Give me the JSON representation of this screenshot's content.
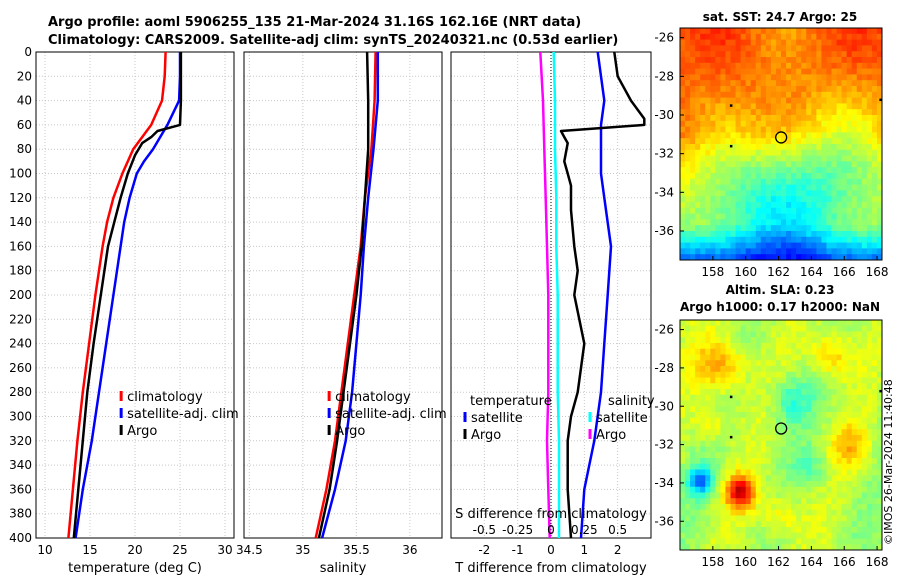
{
  "header": {
    "line1": "Argo profile: aoml 5906255_135 21-Mar-2024 31.16S 162.16E (NRT data)",
    "line2": "Climatology: CARS2009. Satellite-adj clim: synTS_20240321.nc (0.53d earlier)"
  },
  "copyright": "©IMOS 26-Mar-2024 11:40:48",
  "colors": {
    "climatology": "#ff0000",
    "satellite": "#0000ff",
    "argo": "#000000",
    "sat_salinity": "#00ffff",
    "argo_salinity": "#ff00ff"
  },
  "chart_data": [
    {
      "type": "line",
      "name": "temperature",
      "xlabel": "temperature (deg C)",
      "ylabel": "",
      "xlim": [
        9,
        31
      ],
      "ylim": [
        0,
        400
      ],
      "xticks": [
        10,
        15,
        20,
        25,
        30
      ],
      "yticks": [
        0,
        20,
        40,
        60,
        80,
        100,
        120,
        140,
        160,
        180,
        200,
        220,
        240,
        260,
        280,
        300,
        320,
        340,
        360,
        380,
        400
      ],
      "legend": [
        "climatology",
        "satellite-adj. clim",
        "Argo"
      ],
      "series": [
        {
          "name": "climatology",
          "color": "#ff0000",
          "depth": [
            0,
            20,
            40,
            60,
            80,
            100,
            120,
            140,
            160,
            200,
            240,
            280,
            320,
            360,
            400
          ],
          "values": [
            23.4,
            23.3,
            23.0,
            21.8,
            19.8,
            18.6,
            17.6,
            16.9,
            16.4,
            15.6,
            14.9,
            14.2,
            13.6,
            13.1,
            12.6
          ]
        },
        {
          "name": "satellite-adj. clim",
          "color": "#0000ff",
          "depth": [
            0,
            20,
            40,
            60,
            80,
            90,
            100,
            120,
            140,
            160,
            200,
            240,
            280,
            320,
            360,
            400
          ],
          "values": [
            25.0,
            25.0,
            24.9,
            23.6,
            22.0,
            21.0,
            20.2,
            19.4,
            18.8,
            18.4,
            17.6,
            16.8,
            16.0,
            15.2,
            14.2,
            13.4
          ]
        },
        {
          "name": "Argo",
          "color": "#000000",
          "depth": [
            0,
            20,
            40,
            60,
            65,
            70,
            75,
            85,
            100,
            120,
            140,
            160,
            200,
            240,
            280,
            320,
            360,
            400
          ],
          "values": [
            25.1,
            25.1,
            25.1,
            25.0,
            22.5,
            21.8,
            20.8,
            20.0,
            19.2,
            18.4,
            17.7,
            17.0,
            16.2,
            15.4,
            14.7,
            14.2,
            13.7,
            13.2
          ]
        }
      ]
    },
    {
      "type": "line",
      "name": "salinity",
      "xlabel": "salinity",
      "ylabel": "",
      "xlim": [
        34.45,
        36.3
      ],
      "ylim": [
        0,
        400
      ],
      "xticks": [
        34.5,
        35,
        35.5,
        36
      ],
      "xticklabels": [
        "34.5",
        "35",
        "35.5",
        "36"
      ],
      "legend": [
        "climatology",
        "satellite-adj. clim",
        "Argo"
      ],
      "series": [
        {
          "name": "climatology",
          "color": "#ff0000",
          "depth": [
            0,
            40,
            80,
            120,
            160,
            200,
            240,
            280,
            320,
            360,
            400
          ],
          "values": [
            35.68,
            35.67,
            35.64,
            35.58,
            35.54,
            35.48,
            35.42,
            35.36,
            35.3,
            35.22,
            35.12
          ]
        },
        {
          "name": "satellite-adj. clim",
          "color": "#0000ff",
          "depth": [
            0,
            40,
            80,
            120,
            160,
            200,
            240,
            280,
            320,
            360,
            400
          ],
          "values": [
            35.7,
            35.7,
            35.66,
            35.61,
            35.57,
            35.54,
            35.5,
            35.46,
            35.4,
            35.3,
            35.18
          ]
        },
        {
          "name": "Argo",
          "color": "#000000",
          "depth": [
            0,
            40,
            80,
            120,
            160,
            200,
            240,
            280,
            320,
            360,
            400
          ],
          "values": [
            35.6,
            35.61,
            35.61,
            35.58,
            35.55,
            35.5,
            35.44,
            35.38,
            35.32,
            35.25,
            35.15
          ]
        }
      ]
    },
    {
      "type": "line",
      "name": "difference",
      "xlabel": "T difference from climatology",
      "xlabel_top": "S difference from climatology",
      "xlim": [
        -3,
        3
      ],
      "ylim": [
        0,
        400
      ],
      "xticks": [
        -2,
        -1,
        0,
        1,
        2
      ],
      "xticks_s": [
        -0.5,
        -0.25,
        0,
        0.25,
        0.5
      ],
      "xticklabels_s": [
        "-0.5",
        "-0.25",
        "0",
        "0.25",
        "0.5"
      ],
      "legend_left_title": "temperature",
      "legend_right_title": "salinity",
      "legend_left": [
        "satellite",
        "Argo"
      ],
      "legend_right": [
        "satellite",
        "Argo"
      ],
      "series": [
        {
          "name": "T satellite",
          "color": "#0000ff",
          "depth": [
            0,
            20,
            40,
            60,
            80,
            100,
            120,
            160,
            200,
            240,
            280,
            320,
            360,
            400
          ],
          "values": [
            1.4,
            1.5,
            1.6,
            1.5,
            1.5,
            1.5,
            1.6,
            1.8,
            1.7,
            1.6,
            1.5,
            1.3,
            1.0,
            0.9
          ]
        },
        {
          "name": "T Argo",
          "color": "#000000",
          "depth": [
            0,
            20,
            40,
            55,
            60,
            65,
            70,
            75,
            90,
            100,
            110,
            130,
            160,
            180,
            200,
            240,
            280,
            300,
            320,
            360,
            400
          ],
          "values": [
            1.9,
            2.0,
            2.4,
            2.8,
            2.8,
            0.3,
            0.4,
            0.5,
            0.4,
            0.5,
            0.6,
            0.6,
            0.7,
            0.8,
            0.7,
            1.0,
            0.8,
            0.6,
            0.5,
            0.5,
            0.6
          ]
        },
        {
          "name": "S satellite",
          "color": "#00ffff",
          "depth": [
            0,
            40,
            80,
            120,
            160,
            200,
            240,
            280,
            320,
            360,
            400
          ],
          "values": [
            0.02,
            0.03,
            0.03,
            0.04,
            0.04,
            0.05,
            0.05,
            0.05,
            0.06,
            0.06,
            0.06
          ]
        },
        {
          "name": "S Argo",
          "color": "#ff00ff",
          "depth": [
            0,
            40,
            80,
            120,
            160,
            200,
            240,
            280,
            320,
            360,
            400
          ],
          "values": [
            -0.08,
            -0.06,
            -0.05,
            -0.04,
            -0.03,
            -0.02,
            -0.02,
            -0.02,
            -0.03,
            -0.02,
            -0.01
          ]
        }
      ]
    },
    {
      "type": "heatmap",
      "name": "sat-sst-map",
      "title": "sat. SST: 24.7 Argo: 25",
      "xlim": [
        156,
        168.3
      ],
      "ylim": [
        -37.5,
        -25.5
      ],
      "xticks": [
        158,
        160,
        162,
        164,
        166,
        168
      ],
      "yticks": [
        -26,
        -28,
        -30,
        -32,
        -34,
        -36
      ],
      "marker": {
        "lon": 162.16,
        "lat": -31.16
      }
    },
    {
      "type": "heatmap",
      "name": "altim-sla-map",
      "title_line1": "Altim. SLA: 0.23",
      "title_line2": "Argo h1000: 0.17 h2000: NaN",
      "xlim": [
        156,
        168.3
      ],
      "ylim": [
        -37.5,
        -25.5
      ],
      "xticks": [
        158,
        160,
        162,
        164,
        166,
        168
      ],
      "yticks": [
        -26,
        -28,
        -30,
        -32,
        -34,
        -36
      ],
      "marker": {
        "lon": 162.16,
        "lat": -31.16
      }
    }
  ]
}
